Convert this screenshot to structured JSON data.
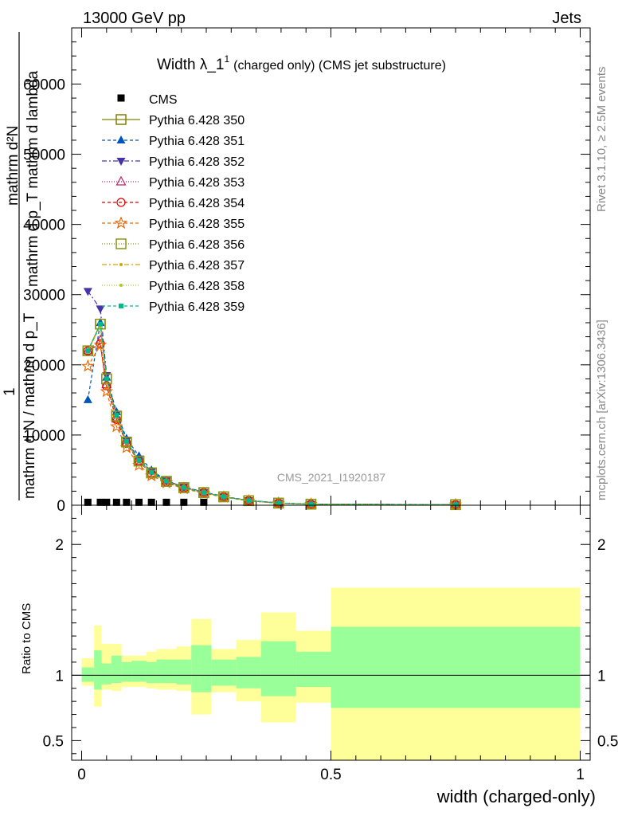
{
  "header": {
    "left": "13000 GeV pp",
    "right": "Jets",
    "side_rivet": "Rivet 3.1.10, ≥ 2.5M events",
    "side_mcplots": "mcplots.cern.ch [arXiv:1306.3436]",
    "watermark": "CMS_2021_I1920187"
  },
  "chart_data": [
    {
      "type": "line",
      "title_main": "Width λ_1",
      "title_sup": "1",
      "title_rest": "(charged only) (CMS jet substructure)",
      "ylabel_numerator": "mathrm d²N",
      "ylabel_numerator2": "mathrm d p_T mathrm d lambda",
      "ylabel_one": "1",
      "ylabel_denominator": "mathrm d N / mathrm d p_T",
      "xlim": [
        -0.02,
        1.02
      ],
      "ylim": [
        0,
        68000
      ],
      "yticks": [
        0,
        10000,
        20000,
        30000,
        40000,
        50000,
        60000
      ],
      "ytick_labels": [
        "0",
        "10000",
        "20000",
        "30000",
        "40000",
        "50000",
        "60000"
      ],
      "x": [
        0.0125,
        0.0375,
        0.05,
        0.07,
        0.09,
        0.115,
        0.14,
        0.17,
        0.205,
        0.245,
        0.285,
        0.335,
        0.395,
        0.46,
        0.75
      ],
      "cms": [
        300,
        300,
        300,
        300,
        300,
        300,
        300,
        300,
        300,
        300,
        0,
        0,
        0,
        0,
        0
      ],
      "series": [
        {
          "name": "Pythia 6.428 350",
          "color": "#808000",
          "marker": "square-open",
          "dash": "",
          "values": [
            22000,
            25800,
            18000,
            12700,
            9000,
            6300,
            4600,
            3400,
            2500,
            1800,
            1200,
            650,
            300,
            150,
            80
          ]
        },
        {
          "name": "Pythia 6.428 351",
          "color": "#0055bb",
          "marker": "triangle-up",
          "dash": "4,3",
          "values": [
            15000,
            26000,
            18200,
            13300,
            9500,
            7000,
            5000,
            3500,
            2600,
            1900,
            1250,
            700,
            330,
            160,
            90
          ]
        },
        {
          "name": "Pythia 6.428 352",
          "color": "#4433aa",
          "marker": "triangle-down",
          "dash": "6,3,2,3",
          "values": [
            30500,
            28000,
            18500,
            13000,
            9200,
            6600,
            4800,
            3500,
            2600,
            1850,
            1220,
            680,
            320,
            150,
            80
          ]
        },
        {
          "name": "Pythia 6.428 353",
          "color": "#bb2266",
          "marker": "triangle-open",
          "dash": "1,2",
          "values": [
            22000,
            23500,
            17200,
            12300,
            8900,
            6300,
            4600,
            3400,
            2500,
            1800,
            1200,
            650,
            300,
            150,
            80
          ]
        },
        {
          "name": "Pythia 6.428 354",
          "color": "#dd0000",
          "marker": "circle-open",
          "dash": "4,3",
          "values": [
            22000,
            23000,
            17000,
            12200,
            8800,
            6200,
            4500,
            3300,
            2450,
            1780,
            1180,
            640,
            300,
            150,
            80
          ]
        },
        {
          "name": "Pythia 6.428 355",
          "color": "#ee6600",
          "marker": "star-open",
          "dash": "4,3",
          "values": [
            19800,
            22800,
            16200,
            11200,
            8200,
            5700,
            4200,
            3200,
            2350,
            1700,
            1150,
            620,
            290,
            140,
            75
          ]
        },
        {
          "name": "Pythia 6.428 356",
          "color": "#889911",
          "marker": "square-open",
          "dash": "1,2",
          "values": [
            22000,
            25800,
            18000,
            12700,
            9000,
            6300,
            4600,
            3400,
            2500,
            1800,
            1200,
            650,
            300,
            150,
            80
          ]
        },
        {
          "name": "Pythia 6.428 357",
          "color": "#ccaa00",
          "marker": "dot",
          "dash": "6,3,2,3",
          "values": [
            22000,
            25500,
            17900,
            12600,
            9000,
            6300,
            4600,
            3400,
            2500,
            1800,
            1200,
            650,
            300,
            150,
            80
          ]
        },
        {
          "name": "Pythia 6.428 358",
          "color": "#aacc22",
          "marker": "dot",
          "dash": "1,2",
          "values": [
            22000,
            25500,
            17900,
            12600,
            9000,
            6300,
            4600,
            3400,
            2500,
            1800,
            1200,
            650,
            300,
            150,
            80
          ]
        },
        {
          "name": "Pythia 6.428 359",
          "color": "#00bb88",
          "marker": "square-filled",
          "dash": "4,3",
          "values": [
            22000,
            25800,
            18000,
            12800,
            9100,
            6400,
            4700,
            3450,
            2520,
            1820,
            1210,
            660,
            310,
            150,
            80
          ]
        }
      ],
      "legend_cms": "CMS",
      "legend_position": "top-left"
    },
    {
      "type": "area",
      "ylabel": "Ratio to CMS",
      "xlabel": "width (charged-only)",
      "xlim": [
        -0.02,
        1.02
      ],
      "ylim": [
        0.35,
        2.3
      ],
      "yticks": [
        0.5,
        1,
        2
      ],
      "ytick_labels": [
        "0.5",
        "1",
        "2"
      ],
      "xticks": [
        0,
        0.5,
        1
      ],
      "xtick_labels": [
        "0",
        "0.5",
        "1"
      ],
      "bins": [
        {
          "lo": 0.0,
          "hi": 0.025,
          "inner": [
            0.95,
            1.06
          ],
          "outer": [
            0.92,
            1.13
          ]
        },
        {
          "lo": 0.025,
          "hi": 0.04,
          "inner": [
            0.89,
            1.19
          ],
          "outer": [
            0.76,
            1.38
          ]
        },
        {
          "lo": 0.04,
          "hi": 0.06,
          "inner": [
            0.93,
            1.09
          ],
          "outer": [
            0.89,
            1.24
          ]
        },
        {
          "lo": 0.06,
          "hi": 0.08,
          "inner": [
            0.94,
            1.15
          ],
          "outer": [
            0.88,
            1.24
          ]
        },
        {
          "lo": 0.08,
          "hi": 0.1,
          "inner": [
            0.95,
            1.1
          ],
          "outer": [
            0.91,
            1.15
          ]
        },
        {
          "lo": 0.1,
          "hi": 0.13,
          "inner": [
            0.95,
            1.11
          ],
          "outer": [
            0.91,
            1.15
          ]
        },
        {
          "lo": 0.13,
          "hi": 0.15,
          "inner": [
            0.94,
            1.1
          ],
          "outer": [
            0.9,
            1.18
          ]
        },
        {
          "lo": 0.15,
          "hi": 0.19,
          "inner": [
            0.94,
            1.12
          ],
          "outer": [
            0.89,
            1.2
          ]
        },
        {
          "lo": 0.19,
          "hi": 0.22,
          "inner": [
            0.93,
            1.12
          ],
          "outer": [
            0.88,
            1.22
          ]
        },
        {
          "lo": 0.22,
          "hi": 0.26,
          "inner": [
            0.87,
            1.23
          ],
          "outer": [
            0.7,
            1.43
          ]
        },
        {
          "lo": 0.26,
          "hi": 0.31,
          "inner": [
            0.92,
            1.12
          ],
          "outer": [
            0.87,
            1.2
          ]
        },
        {
          "lo": 0.31,
          "hi": 0.36,
          "inner": [
            0.9,
            1.14
          ],
          "outer": [
            0.8,
            1.27
          ]
        },
        {
          "lo": 0.36,
          "hi": 0.43,
          "inner": [
            0.84,
            1.26
          ],
          "outer": [
            0.64,
            1.48
          ]
        },
        {
          "lo": 0.43,
          "hi": 0.5,
          "inner": [
            0.91,
            1.18
          ],
          "outer": [
            0.79,
            1.34
          ]
        },
        {
          "lo": 0.5,
          "hi": 1.0,
          "inner": [
            0.75,
            1.37
          ],
          "outer": [
            0.35,
            1.67
          ]
        }
      ],
      "inner_color": "#99ff99",
      "outer_color": "#ffff99"
    }
  ]
}
